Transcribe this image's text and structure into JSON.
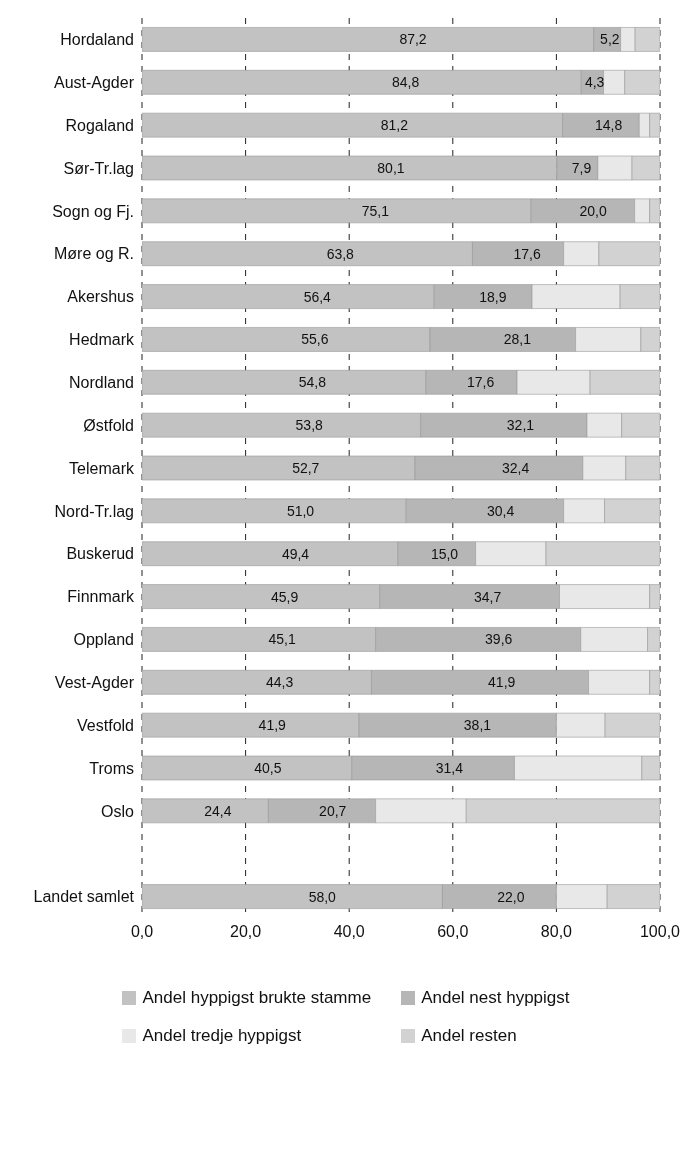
{
  "chart_data": {
    "type": "bar",
    "orientation": "horizontal",
    "stacked": true,
    "categories": [
      "Hordaland",
      "Aust-Agder",
      "Rogaland",
      "Sør-Tr.lag",
      "Sogn og Fj.",
      "Møre og R.",
      "Akershus",
      "Hedmark",
      "Nordland",
      "Østfold",
      "Telemark",
      "Nord-Tr.lag",
      "Buskerud",
      "Finnmark",
      "Oppland",
      "Vest-Agder",
      "Vestfold",
      "Troms",
      "Oslo",
      null,
      "Landet samlet"
    ],
    "series": [
      {
        "name": "Andel hyppigst brukte stamme",
        "color": "#c2c2c2",
        "values": [
          87.2,
          84.8,
          81.2,
          80.1,
          75.1,
          63.8,
          56.4,
          55.6,
          54.8,
          53.8,
          52.7,
          51.0,
          49.4,
          45.9,
          45.1,
          44.3,
          41.9,
          40.5,
          24.4,
          null,
          58.0
        ],
        "value_labels": [
          "87,2",
          "84,8",
          "81,2",
          "80,1",
          "75,1",
          "63,8",
          "56,4",
          "55,6",
          "54,8",
          "53,8",
          "52,7",
          "51,0",
          "49,4",
          "45,9",
          "45,1",
          "44,3",
          "41,9",
          "40,5",
          "24,4",
          null,
          "58,0"
        ]
      },
      {
        "name": "Andel nest hyppigst",
        "color": "#b6b6b6",
        "values": [
          5.2,
          4.3,
          14.8,
          7.9,
          20.0,
          17.6,
          18.9,
          28.1,
          17.6,
          32.1,
          32.4,
          30.4,
          15.0,
          34.7,
          39.6,
          41.9,
          38.1,
          31.4,
          20.7,
          null,
          22.0
        ],
        "value_labels": [
          "5,2",
          "4,3",
          "14,8",
          "7,9",
          "20,0",
          "17,6",
          "18,9",
          "28,1",
          "17,6",
          "32,1",
          "32,4",
          "30,4",
          "15,0",
          "34,7",
          "39,6",
          "41,9",
          "38,1",
          "31,4",
          "20,7",
          null,
          "22,0"
        ]
      },
      {
        "name": "Andel tredje hyppigst",
        "color": "#e8e8e8",
        "values": [
          2.8,
          4.1,
          2,
          6.6,
          2.9,
          6.8,
          17,
          12.6,
          14.1,
          6.7,
          8.3,
          7.9,
          13.6,
          17.4,
          12.9,
          11.8,
          9.4,
          24.6,
          17.5,
          null,
          9.8
        ]
      },
      {
        "name": "Andel resten",
        "color": "#d2d2d2",
        "values": [
          4.8,
          6.8,
          2,
          5.4,
          2,
          11.8,
          7.7,
          3.7,
          13.5,
          7.4,
          6.6,
          10.7,
          22,
          2,
          2.4,
          2,
          10.6,
          3.5,
          37.4,
          null,
          10.2
        ]
      }
    ],
    "xlim": [
      0,
      100
    ],
    "xticks": [
      {
        "value": 0,
        "label": "0,0"
      },
      {
        "value": 20,
        "label": "20,0"
      },
      {
        "value": 40,
        "label": "40,0"
      },
      {
        "value": 60,
        "label": "60,0"
      },
      {
        "value": 80,
        "label": "80,0"
      },
      {
        "value": 100,
        "label": "100,0"
      }
    ],
    "grid": "x",
    "legend": "bottom"
  }
}
